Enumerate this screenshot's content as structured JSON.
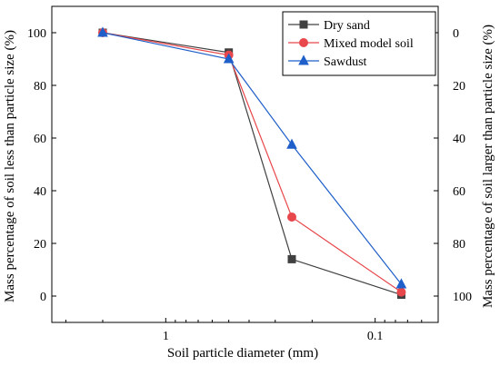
{
  "chart_data": {
    "type": "line",
    "xscale": "log-reversed",
    "xlabel": "Soil particle diameter (mm)",
    "ylabel_left": "Mass percentage of soil less than particle size (%)",
    "ylabel_right": "Mass percentage of soil larger than particle size (%)",
    "xlim": [
      3.5,
      0.05
    ],
    "ylim": [
      -10,
      110
    ],
    "x_tick_labels": [
      "1",
      "0.1"
    ],
    "x_ticks": [
      1,
      0.1
    ],
    "y_ticks_left": [
      0,
      20,
      40,
      60,
      80,
      100
    ],
    "y_ticks_right": [
      0,
      20,
      40,
      60,
      80,
      100
    ],
    "grid": false,
    "legend_position": "top-right",
    "series": [
      {
        "name": "Dry sand",
        "color": "#404040",
        "marker": "square",
        "x": [
          2,
          0.5,
          0.25,
          0.075
        ],
        "y": [
          100,
          92.5,
          14,
          0.5
        ]
      },
      {
        "name": "Mixed model soil",
        "color": "#e8474b",
        "marker": "circle",
        "x": [
          2,
          0.5,
          0.25,
          0.075
        ],
        "y": [
          100,
          91.5,
          30,
          1.5
        ]
      },
      {
        "name": "Sawdust",
        "color": "#1f5fc9",
        "marker": "triangle",
        "x": [
          2,
          0.5,
          0.25,
          0.075
        ],
        "y": [
          100,
          90,
          57.5,
          4.5
        ]
      }
    ]
  }
}
